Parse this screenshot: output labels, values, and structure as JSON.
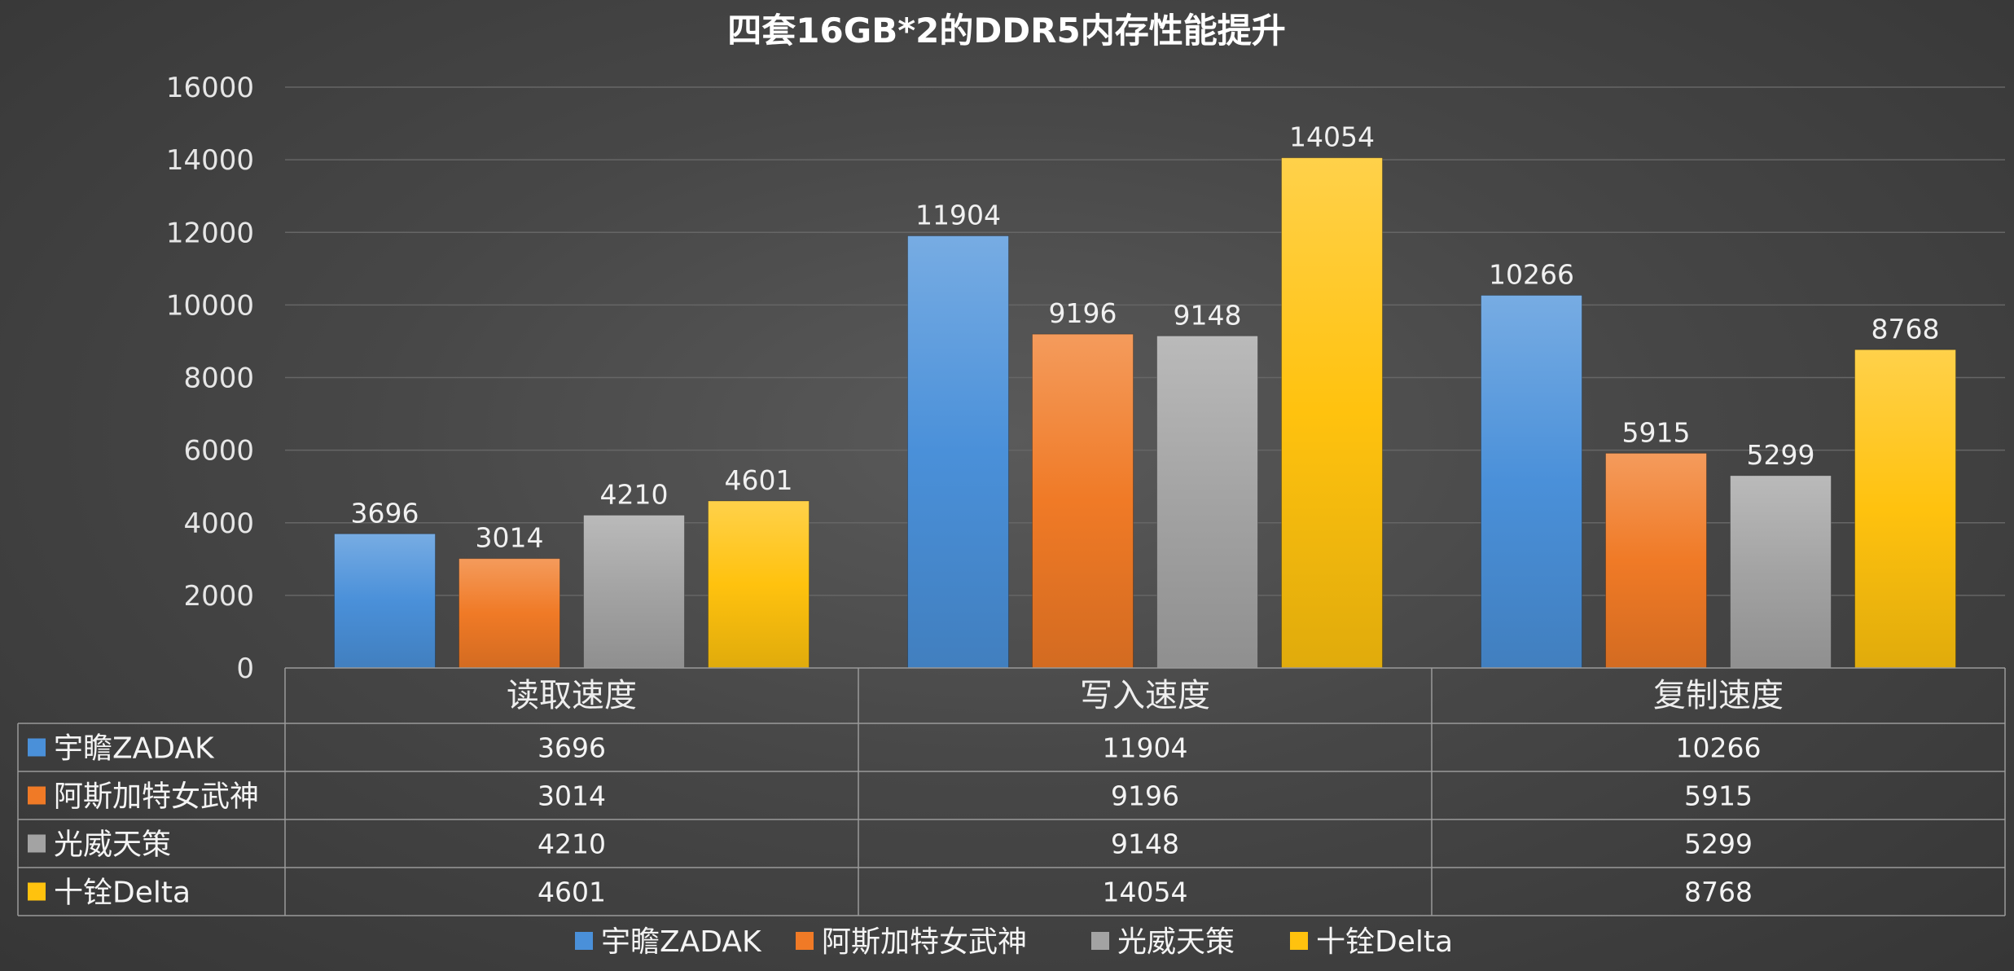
{
  "chart_data": {
    "type": "bar",
    "title": "四套16GB*2的DDR5内存性能提升",
    "categories": [
      "读取速度",
      "写入速度",
      "复制速度"
    ],
    "series": [
      {
        "name": "宇瞻ZADAK",
        "values": [
          3696,
          11904,
          10266
        ],
        "color": "#4a90d9"
      },
      {
        "name": "阿斯加特女武神",
        "values": [
          3014,
          9196,
          5915
        ],
        "color": "#f07a26"
      },
      {
        "name": "光威天策",
        "values": [
          4210,
          9148,
          5299
        ],
        "color": "#a3a3a3"
      },
      {
        "name": "十铨Delta",
        "values": [
          4601,
          14054,
          8768
        ],
        "color": "#ffc20e"
      }
    ],
    "ylim": [
      0,
      16000
    ],
    "yticks": [
      0,
      2000,
      4000,
      6000,
      8000,
      10000,
      12000,
      14000,
      16000
    ],
    "grid": true,
    "legend": "bottom",
    "data_table": true,
    "data_labels": true
  }
}
